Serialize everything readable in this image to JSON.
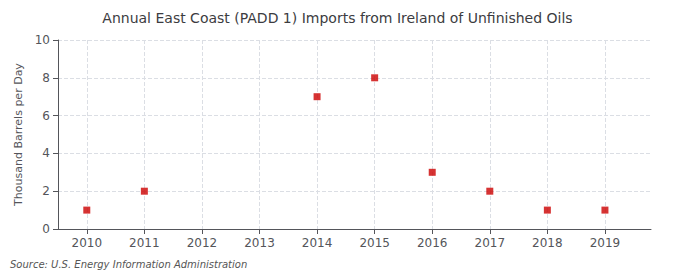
{
  "chart_data": {
    "type": "scatter",
    "title": "Annual East Coast (PADD 1) Imports from Ireland of Unfinished Oils",
    "ylabel": "Thousand Barrels per Day",
    "annotation": "Source: U.S. Energy Information Administration",
    "x": [
      2010,
      2011,
      2014,
      2015,
      2016,
      2017,
      2018,
      2019
    ],
    "values": [
      1,
      2,
      7,
      8,
      3,
      2,
      1,
      1
    ],
    "color": "#cc0000",
    "marker": "square",
    "xlim": [
      2009.5,
      2019.8
    ],
    "xticks": [
      2010,
      2011,
      2012,
      2013,
      2014,
      2015,
      2016,
      2017,
      2018,
      2019
    ],
    "ylim": [
      0,
      10
    ],
    "yticks": [
      0,
      2,
      4,
      6,
      8,
      10
    ],
    "grid": true
  }
}
